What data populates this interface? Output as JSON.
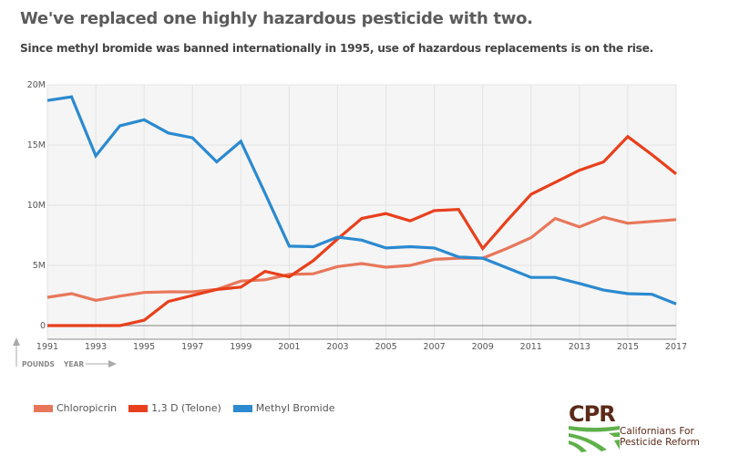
{
  "header": {
    "title": "We've replaced one highly hazardous pesticide with two.",
    "subtitle": "Since methyl bromide was banned internationally in 1995, use of hazardous replacements is on the rise."
  },
  "chart_data": {
    "type": "line",
    "title": "We've replaced one highly hazardous pesticide with two.",
    "subtitle": "Since methyl bromide was banned internationally in 1995, use of hazardous replacements is on the rise.",
    "xlabel": "YEAR",
    "ylabel": "POUNDS",
    "x": [
      1991,
      1992,
      1993,
      1994,
      1995,
      1996,
      1997,
      1998,
      1999,
      2000,
      2001,
      2002,
      2003,
      2004,
      2005,
      2006,
      2007,
      2008,
      2009,
      2010,
      2011,
      2012,
      2013,
      2014,
      2015,
      2016,
      2017
    ],
    "xlim": [
      1991,
      2017
    ],
    "ylim": [
      0,
      20000000
    ],
    "x_ticks": [
      "1991",
      "1993",
      "1995",
      "1997",
      "1999",
      "2001",
      "2003",
      "2005",
      "2007",
      "2009",
      "2011",
      "2013",
      "2015",
      "2017"
    ],
    "x_tick_values": [
      1991,
      1993,
      1995,
      1997,
      1999,
      2001,
      2003,
      2005,
      2007,
      2009,
      2011,
      2013,
      2015,
      2017
    ],
    "y_ticks": [
      "0",
      "5M",
      "10M",
      "15M",
      "20M"
    ],
    "y_tick_values": [
      0,
      5000000,
      10000000,
      15000000,
      20000000
    ],
    "grid": true,
    "legend_position": "bottom-left",
    "series": [
      {
        "name": "Chloropicrin",
        "color": "#e8775a",
        "values": [
          2350000,
          2650000,
          2100000,
          2450000,
          2750000,
          2800000,
          2800000,
          3000000,
          3700000,
          3800000,
          4250000,
          4300000,
          4900000,
          5150000,
          4850000,
          5000000,
          5500000,
          5600000,
          5600000,
          6400000,
          7300000,
          8900000,
          8200000,
          9000000,
          8500000,
          8650000,
          8800000
        ]
      },
      {
        "name": "1,3 D (Telone)",
        "color": "#e8401c",
        "values": [
          0,
          0,
          0,
          0,
          450000,
          2000000,
          2500000,
          3000000,
          3200000,
          4500000,
          4050000,
          5400000,
          7200000,
          8900000,
          9300000,
          8700000,
          9550000,
          9650000,
          6400000,
          8700000,
          10900000,
          11900000,
          12900000,
          13600000,
          15700000,
          14200000,
          12600000
        ]
      },
      {
        "name": "Methyl Bromide",
        "color": "#2b8ad0",
        "values": [
          18700000,
          19000000,
          14100000,
          16600000,
          17100000,
          16000000,
          15600000,
          13600000,
          15300000,
          11000000,
          6600000,
          6550000,
          7350000,
          7100000,
          6450000,
          6550000,
          6450000,
          5700000,
          5600000,
          4800000,
          4000000,
          4000000,
          3500000,
          2950000,
          2650000,
          2600000,
          1800000
        ]
      }
    ],
    "axis_hints": {
      "y": "POUNDS",
      "x": "YEAR"
    }
  },
  "legend": {
    "items": [
      {
        "label": "Chloropicrin",
        "color": "#e8775a"
      },
      {
        "label": "1,3 D (Telone)",
        "color": "#e8401c"
      },
      {
        "label": "Methyl Bromide",
        "color": "#2b8ad0"
      }
    ]
  },
  "logo": {
    "abbrev": "CPR",
    "line1": "Californians For",
    "line2": "Pesticide Reform",
    "brown": "#5b2a18",
    "green": "#5fb04a"
  }
}
